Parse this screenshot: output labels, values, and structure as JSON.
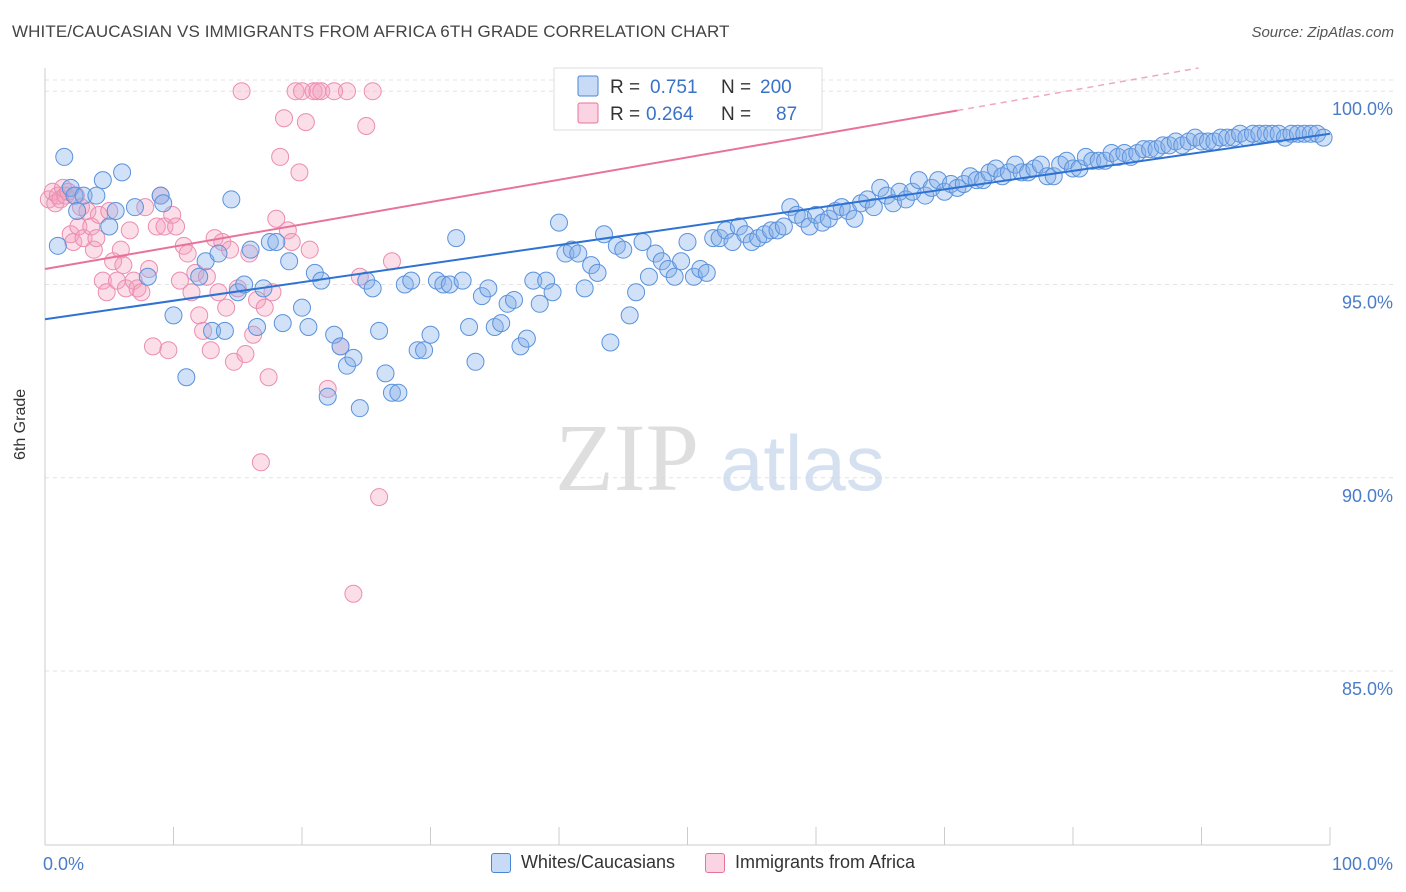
{
  "header": {
    "title": "WHITE/CAUCASIAN VS IMMIGRANTS FROM AFRICA 6TH GRADE CORRELATION CHART",
    "source": "Source: ZipAtlas.com"
  },
  "watermark": {
    "zip": "ZIP",
    "atlas": "atlas"
  },
  "colors": {
    "blue": "#4a86d8",
    "blue_fill": "rgba(133,175,235,0.38)",
    "pink": "#e8739a",
    "pink_fill": "rgba(244,160,190,0.35)",
    "axis_text": "#4a7cc7"
  },
  "chart_data": {
    "type": "scatter",
    "ylabel": "6th Grade",
    "xlim": [
      0,
      100
    ],
    "ylim": [
      80.5,
      100.6
    ],
    "x_tick_labels": [
      "0.0%",
      "100.0%"
    ],
    "y_ticks": [
      85,
      90,
      95,
      100
    ],
    "y_tick_labels": [
      "85.0%",
      "90.0%",
      "95.0%",
      "100.0%"
    ],
    "grid": true,
    "legend": {
      "placement": "top-center",
      "entries": [
        {
          "r_label": "R =",
          "r_value": "0.751",
          "n_label": "N =",
          "n_value": "200"
        },
        {
          "r_label": "R =",
          "r_value": "0.264",
          "n_label": "N =",
          "n_value": "87"
        }
      ]
    },
    "series": [
      {
        "name": "Whites/Caucasians",
        "color": "#4a86d8",
        "trend": {
          "x": [
            0,
            100
          ],
          "y": [
            94.1,
            98.9
          ]
        },
        "points": [
          [
            1,
            96
          ],
          [
            1.5,
            98.3
          ],
          [
            2,
            97.5
          ],
          [
            2.3,
            97.3
          ],
          [
            2.5,
            96.9
          ],
          [
            3,
            97.3
          ],
          [
            4,
            97.3
          ],
          [
            4.5,
            97.7
          ],
          [
            5,
            96.5
          ],
          [
            5.5,
            96.9
          ],
          [
            6,
            97.9
          ],
          [
            7,
            97.0
          ],
          [
            8,
            95.2
          ],
          [
            9,
            97.3
          ],
          [
            9.2,
            97.1
          ],
          [
            10,
            94.2
          ],
          [
            11,
            92.6
          ],
          [
            12,
            95.2
          ],
          [
            12.5,
            95.6
          ],
          [
            13,
            93.8
          ],
          [
            13.5,
            95.8
          ],
          [
            14,
            93.8
          ],
          [
            14.5,
            97.2
          ],
          [
            15,
            94.8
          ],
          [
            15.5,
            95.0
          ],
          [
            16,
            95.9
          ],
          [
            16.5,
            93.9
          ],
          [
            17,
            94.9
          ],
          [
            17.5,
            96.1
          ],
          [
            18,
            96.1
          ],
          [
            18.5,
            94.0
          ],
          [
            19,
            95.6
          ],
          [
            20,
            94.4
          ],
          [
            20.5,
            93.9
          ],
          [
            21,
            95.3
          ],
          [
            21.5,
            95.1
          ],
          [
            22,
            92.1
          ],
          [
            22.5,
            93.7
          ],
          [
            23,
            93.4
          ],
          [
            23.5,
            92.9
          ],
          [
            24,
            93.1
          ],
          [
            24.5,
            91.8
          ],
          [
            25,
            95.1
          ],
          [
            25.5,
            94.9
          ],
          [
            26,
            93.8
          ],
          [
            26.5,
            92.7
          ],
          [
            27,
            92.2
          ],
          [
            27.5,
            92.2
          ],
          [
            28,
            95.0
          ],
          [
            28.5,
            95.1
          ],
          [
            29,
            93.3
          ],
          [
            29.5,
            93.3
          ],
          [
            30,
            93.7
          ],
          [
            30.5,
            95.1
          ],
          [
            31,
            95.0
          ],
          [
            31.5,
            95.0
          ],
          [
            32,
            96.2
          ],
          [
            32.5,
            95.1
          ],
          [
            33,
            93.9
          ],
          [
            33.5,
            93.0
          ],
          [
            34,
            94.7
          ],
          [
            34.5,
            94.9
          ],
          [
            35,
            93.9
          ],
          [
            35.5,
            94.0
          ],
          [
            36,
            94.5
          ],
          [
            36.5,
            94.6
          ],
          [
            37,
            93.4
          ],
          [
            37.5,
            93.6
          ],
          [
            38,
            95.1
          ],
          [
            38.5,
            94.5
          ],
          [
            39,
            95.1
          ],
          [
            39.5,
            94.8
          ],
          [
            40,
            96.6
          ],
          [
            40.5,
            95.8
          ],
          [
            41,
            95.9
          ],
          [
            41.5,
            95.8
          ],
          [
            42,
            94.9
          ],
          [
            42.5,
            95.5
          ],
          [
            43,
            95.3
          ],
          [
            43.5,
            96.3
          ],
          [
            44,
            93.5
          ],
          [
            44.5,
            96.0
          ],
          [
            45,
            95.9
          ],
          [
            45.5,
            94.2
          ],
          [
            46,
            94.8
          ],
          [
            46.5,
            96.1
          ],
          [
            47,
            95.2
          ],
          [
            47.5,
            95.8
          ],
          [
            48,
            95.6
          ],
          [
            48.5,
            95.4
          ],
          [
            49,
            95.2
          ],
          [
            49.5,
            95.6
          ],
          [
            50,
            96.1
          ],
          [
            50.5,
            95.2
          ],
          [
            51,
            95.4
          ],
          [
            51.5,
            95.3
          ],
          [
            52,
            96.2
          ],
          [
            52.5,
            96.2
          ],
          [
            53,
            96.4
          ],
          [
            53.5,
            96.1
          ],
          [
            54,
            96.5
          ],
          [
            54.5,
            96.3
          ],
          [
            55,
            96.1
          ],
          [
            55.5,
            96.2
          ],
          [
            56,
            96.3
          ],
          [
            56.5,
            96.4
          ],
          [
            57,
            96.4
          ],
          [
            57.5,
            96.5
          ],
          [
            58,
            97.0
          ],
          [
            58.5,
            96.8
          ],
          [
            59,
            96.7
          ],
          [
            59.5,
            96.5
          ],
          [
            60,
            96.8
          ],
          [
            60.5,
            96.6
          ],
          [
            61,
            96.7
          ],
          [
            61.5,
            96.9
          ],
          [
            62,
            97.0
          ],
          [
            62.5,
            96.9
          ],
          [
            63,
            96.7
          ],
          [
            63.5,
            97.1
          ],
          [
            64,
            97.2
          ],
          [
            64.5,
            97.0
          ],
          [
            65,
            97.5
          ],
          [
            65.5,
            97.3
          ],
          [
            66,
            97.1
          ],
          [
            66.5,
            97.4
          ],
          [
            67,
            97.2
          ],
          [
            67.5,
            97.4
          ],
          [
            68,
            97.7
          ],
          [
            68.5,
            97.3
          ],
          [
            69,
            97.5
          ],
          [
            69.5,
            97.7
          ],
          [
            70,
            97.4
          ],
          [
            70.5,
            97.6
          ],
          [
            71,
            97.5
          ],
          [
            71.5,
            97.6
          ],
          [
            72,
            97.8
          ],
          [
            72.5,
            97.7
          ],
          [
            73,
            97.7
          ],
          [
            73.5,
            97.9
          ],
          [
            74,
            98.0
          ],
          [
            74.5,
            97.8
          ],
          [
            75,
            97.9
          ],
          [
            75.5,
            98.1
          ],
          [
            76,
            97.9
          ],
          [
            76.5,
            97.9
          ],
          [
            77,
            98.0
          ],
          [
            77.5,
            98.1
          ],
          [
            78,
            97.8
          ],
          [
            78.5,
            97.8
          ],
          [
            79,
            98.1
          ],
          [
            79.5,
            98.2
          ],
          [
            80,
            98.0
          ],
          [
            80.5,
            98.0
          ],
          [
            81,
            98.3
          ],
          [
            81.5,
            98.2
          ],
          [
            82,
            98.2
          ],
          [
            82.5,
            98.2
          ],
          [
            83,
            98.4
          ],
          [
            83.5,
            98.3
          ],
          [
            84,
            98.4
          ],
          [
            84.5,
            98.3
          ],
          [
            85,
            98.4
          ],
          [
            85.5,
            98.5
          ],
          [
            86,
            98.5
          ],
          [
            86.5,
            98.5
          ],
          [
            87,
            98.6
          ],
          [
            87.5,
            98.6
          ],
          [
            88,
            98.7
          ],
          [
            88.5,
            98.6
          ],
          [
            89,
            98.7
          ],
          [
            89.5,
            98.8
          ],
          [
            90,
            98.7
          ],
          [
            90.5,
            98.7
          ],
          [
            91,
            98.7
          ],
          [
            91.5,
            98.8
          ],
          [
            92,
            98.8
          ],
          [
            92.5,
            98.8
          ],
          [
            93,
            98.9
          ],
          [
            93.5,
            98.8
          ],
          [
            94,
            98.9
          ],
          [
            94.5,
            98.9
          ],
          [
            95,
            98.9
          ],
          [
            95.5,
            98.9
          ],
          [
            96,
            98.9
          ],
          [
            96.5,
            98.8
          ],
          [
            97,
            98.9
          ],
          [
            97.5,
            98.9
          ],
          [
            98,
            98.9
          ],
          [
            98.5,
            98.9
          ],
          [
            99,
            98.9
          ],
          [
            99.5,
            98.8
          ]
        ]
      },
      {
        "name": "Immigrants from Africa",
        "color": "#e8739a",
        "trend": {
          "x": [
            0,
            71
          ],
          "y": [
            95.4,
            99.5
          ]
        },
        "trend_dashed": {
          "x": [
            71,
            100
          ],
          "y": [
            99.5,
            101.2
          ]
        },
        "points": [
          [
            0.3,
            97.2
          ],
          [
            0.6,
            97.4
          ],
          [
            0.8,
            97.1
          ],
          [
            1,
            97.3
          ],
          [
            1.2,
            97.2
          ],
          [
            1.4,
            97.5
          ],
          [
            1.6,
            97.3
          ],
          [
            1.8,
            97.4
          ],
          [
            2,
            96.3
          ],
          [
            2.2,
            96.1
          ],
          [
            2.4,
            97.3
          ],
          [
            2.6,
            96.5
          ],
          [
            2.8,
            97.0
          ],
          [
            3,
            96.2
          ],
          [
            3.3,
            96.9
          ],
          [
            3.6,
            96.5
          ],
          [
            3.8,
            95.9
          ],
          [
            4,
            96.2
          ],
          [
            4.2,
            96.8
          ],
          [
            4.5,
            95.1
          ],
          [
            4.8,
            94.8
          ],
          [
            5,
            96.9
          ],
          [
            5.3,
            95.6
          ],
          [
            5.6,
            95.1
          ],
          [
            5.9,
            95.9
          ],
          [
            6.1,
            95.5
          ],
          [
            6.3,
            94.9
          ],
          [
            6.6,
            96.4
          ],
          [
            6.9,
            95.1
          ],
          [
            7.2,
            94.9
          ],
          [
            7.5,
            94.8
          ],
          [
            7.8,
            97.0
          ],
          [
            8.1,
            95.4
          ],
          [
            8.4,
            93.4
          ],
          [
            8.7,
            96.5
          ],
          [
            9,
            97.3
          ],
          [
            9.3,
            96.5
          ],
          [
            9.6,
            93.3
          ],
          [
            9.9,
            96.8
          ],
          [
            10.2,
            96.5
          ],
          [
            10.5,
            95.1
          ],
          [
            10.8,
            96.0
          ],
          [
            11.1,
            95.8
          ],
          [
            11.4,
            94.8
          ],
          [
            11.7,
            95.3
          ],
          [
            12,
            94.2
          ],
          [
            12.3,
            93.8
          ],
          [
            12.6,
            95.2
          ],
          [
            12.9,
            93.3
          ],
          [
            13.2,
            96.2
          ],
          [
            13.5,
            94.8
          ],
          [
            13.8,
            96.1
          ],
          [
            14.1,
            94.4
          ],
          [
            14.4,
            95.9
          ],
          [
            14.7,
            93.0
          ],
          [
            15,
            94.9
          ],
          [
            15.3,
            100
          ],
          [
            15.6,
            93.2
          ],
          [
            15.9,
            95.8
          ],
          [
            16.2,
            93.7
          ],
          [
            16.5,
            94.6
          ],
          [
            16.8,
            90.4
          ],
          [
            17.1,
            94.4
          ],
          [
            17.4,
            92.6
          ],
          [
            17.7,
            94.8
          ],
          [
            18,
            96.7
          ],
          [
            18.3,
            98.3
          ],
          [
            18.6,
            99.3
          ],
          [
            18.9,
            96.4
          ],
          [
            19.2,
            96.1
          ],
          [
            19.5,
            100
          ],
          [
            19.8,
            97.9
          ],
          [
            20,
            100
          ],
          [
            20.3,
            99.2
          ],
          [
            20.6,
            95.9
          ],
          [
            20.9,
            100
          ],
          [
            21.2,
            100
          ],
          [
            21.5,
            100
          ],
          [
            22,
            92.3
          ],
          [
            22.5,
            100
          ],
          [
            23,
            93.4
          ],
          [
            23.5,
            100
          ],
          [
            24,
            87.0
          ],
          [
            24.5,
            95.2
          ],
          [
            25,
            99.1
          ],
          [
            25.5,
            100
          ],
          [
            26,
            89.5
          ],
          [
            27,
            95.6
          ]
        ]
      }
    ]
  }
}
